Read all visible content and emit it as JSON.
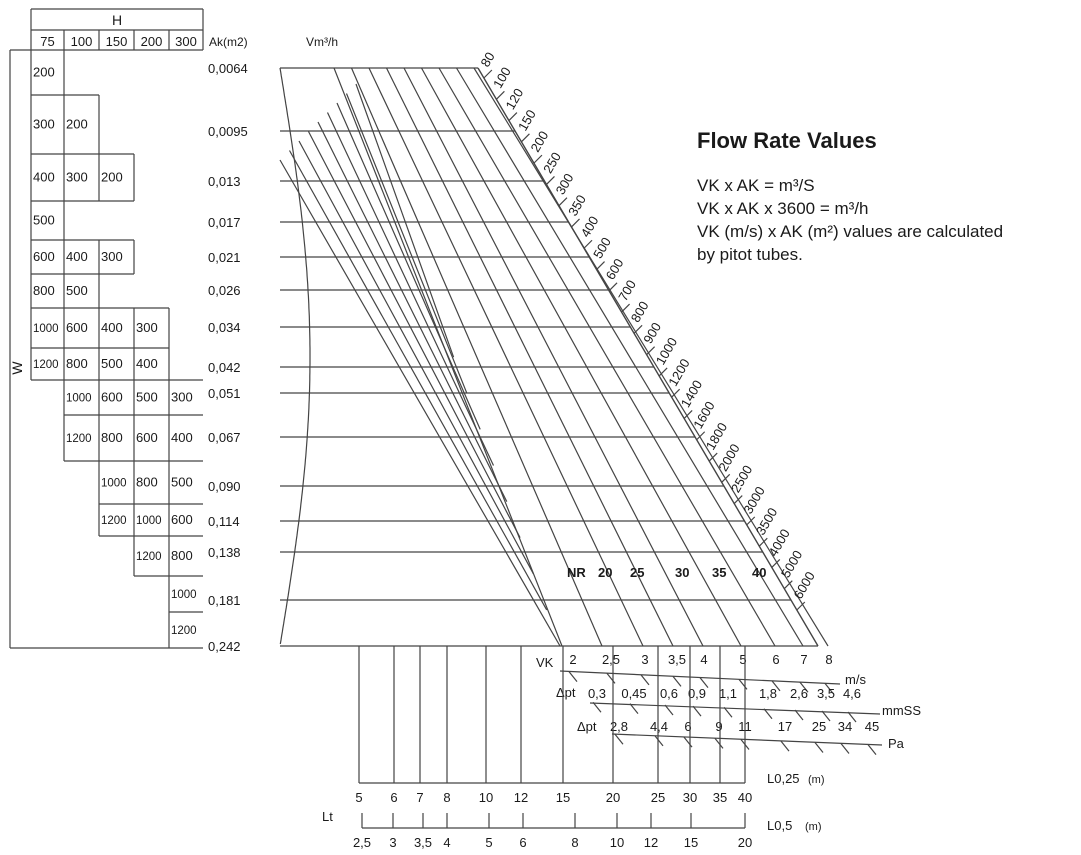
{
  "duct_table": {
    "h_label": "H",
    "w_label": "W",
    "ak_label": "Ak(m2)",
    "h_values": [
      "75",
      "100",
      "150",
      "200",
      "300"
    ],
    "rows": [
      {
        "ak": "0,0064",
        "cells": [
          "200",
          "",
          "",
          "",
          ""
        ]
      },
      {
        "ak": "0,0095",
        "cells": [
          "300",
          "200",
          "",
          "",
          ""
        ]
      },
      {
        "ak": "0,013",
        "cells": [
          "400",
          "300",
          "200",
          "",
          ""
        ]
      },
      {
        "ak": "0,017",
        "cells": [
          "500",
          "",
          "",
          "",
          ""
        ]
      },
      {
        "ak": "0,021",
        "cells": [
          "600",
          "400",
          "300",
          "",
          ""
        ]
      },
      {
        "ak": "0,026",
        "cells": [
          "800",
          "500",
          "",
          "",
          ""
        ]
      },
      {
        "ak": "0,034",
        "cells": [
          "1000",
          "600",
          "400",
          "300",
          ""
        ]
      },
      {
        "ak": "0,042",
        "cells": [
          "1200",
          "800",
          "500",
          "400",
          ""
        ]
      },
      {
        "ak": "0,051",
        "cells": [
          "",
          "1000",
          "600",
          "500",
          "300"
        ]
      },
      {
        "ak": "0,067",
        "cells": [
          "",
          "1200",
          "800",
          "600",
          "400"
        ]
      },
      {
        "ak": "0,090",
        "cells": [
          "",
          "",
          "1000",
          "800",
          "500"
        ]
      },
      {
        "ak": "0,114",
        "cells": [
          "",
          "",
          "1200",
          "1000",
          "600"
        ]
      },
      {
        "ak": "0,138",
        "cells": [
          "",
          "",
          "",
          "1200",
          "800"
        ]
      },
      {
        "ak": "0,181",
        "cells": [
          "",
          "",
          "",
          "",
          "1000"
        ]
      },
      {
        "ak": "0,242",
        "cells": [
          "",
          "",
          "",
          "",
          "1200"
        ]
      }
    ]
  },
  "nomogram": {
    "vm_label": "Vm³/h",
    "flow_rates": [
      "80",
      "100",
      "120",
      "150",
      "200",
      "250",
      "300",
      "350",
      "400",
      "500",
      "600",
      "700",
      "800",
      "900",
      "1000",
      "1200",
      "1400",
      "1600",
      "1800",
      "2000",
      "2500",
      "3000",
      "3500",
      "4000",
      "5000",
      "6000"
    ],
    "nr_labels": [
      "NR",
      "20",
      "25",
      "30",
      "35",
      "40"
    ]
  },
  "scales": {
    "vk": {
      "label": "VK",
      "unit": "m/s",
      "ticks": [
        "2",
        "2,5",
        "3",
        "3,5",
        "4",
        "5",
        "6",
        "7",
        "8"
      ]
    },
    "dpt_mmss": {
      "label": "Δpt",
      "unit": "mmSS",
      "ticks": [
        "0,3",
        "0,45",
        "0,6",
        "0,9",
        "1,1",
        "1,8",
        "2,6",
        "3,5",
        "4,6"
      ]
    },
    "dpt_pa": {
      "label": "Δpt",
      "unit": "Pa",
      "ticks": [
        "2,8",
        "4,4",
        "6",
        "9",
        "11",
        "17",
        "25",
        "34",
        "45"
      ]
    },
    "l025": {
      "label": "L0,25",
      "unit": "(m)",
      "ticks": [
        "5",
        "6",
        "7",
        "8",
        "10",
        "12",
        "15",
        "20",
        "25",
        "30",
        "35",
        "40"
      ]
    },
    "lt_label": "Lt",
    "l05": {
      "label": "L0,5",
      "unit": "(m)",
      "ticks": [
        "2,5",
        "3",
        "3,5",
        "4",
        "5",
        "6",
        "8",
        "10",
        "12",
        "15",
        "20"
      ]
    }
  },
  "info": {
    "title": "Flow Rate Values",
    "line1": "VK x AK = m³/S",
    "line2": "VK x AK x 3600 = m³/h",
    "line3": "VK (m/s) x AK (m²) values are calculated",
    "line4": "by pitot tubes."
  }
}
